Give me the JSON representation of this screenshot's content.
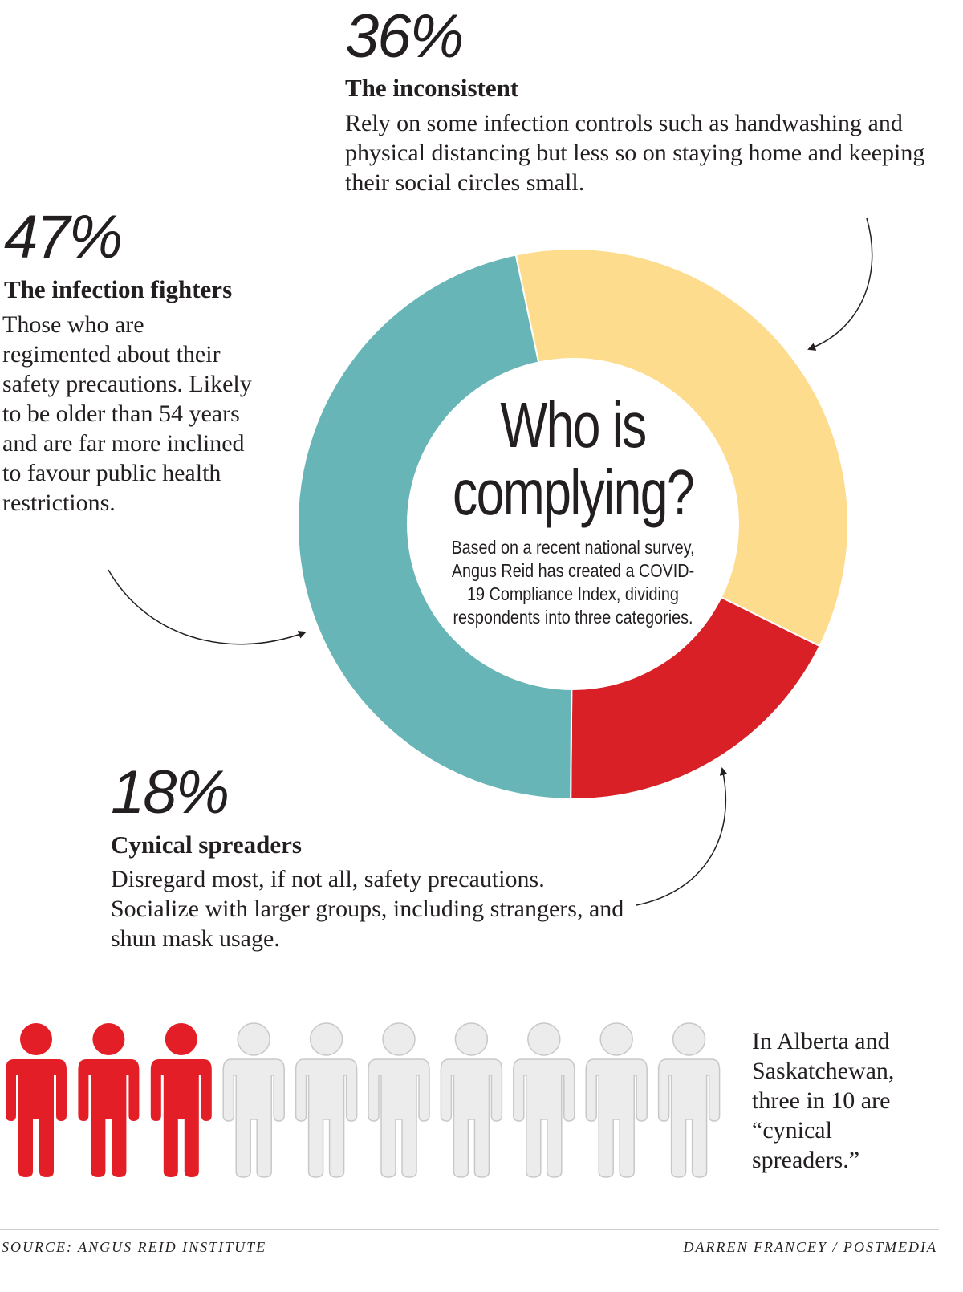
{
  "chart_data": {
    "type": "donut",
    "title": "Who is complying?",
    "subtitle": "Based on a recent national survey, Angus Reid has created a COVID-19 Compliance Index, dividing respondents into three categories.",
    "categories": [
      "The inconsistent",
      "Cynical spreaders",
      "The infection fighters"
    ],
    "values": [
      36,
      18,
      47
    ],
    "value_labels": [
      "36%",
      "18%",
      "47%"
    ],
    "colors": [
      "#fddc8e",
      "#d92027",
      "#67b5b6"
    ],
    "descriptions": [
      "Rely on some infection controls such as handwashing and physical distancing but less so on staying home and keeping their social circles small.",
      "Disregard most, if not all, safety precautions. Socialize with larger groups, including strangers, and shun mask usage.",
      "Those who are regimented about their safety precautions. Likely to be older than 54 years and are far more inclined to favour public health restrictions."
    ]
  },
  "pictogram": {
    "filled": 3,
    "total": 10,
    "filled_color": "#e41e26",
    "empty_color": "#ececec",
    "text": "In Alberta and Saskatchewan, three in 10 are “cynical spreaders.”"
  },
  "footer": {
    "source": "SOURCE: ANGUS REID INSTITUTE",
    "credit": "DARREN FRANCEY / POSTMEDIA"
  }
}
